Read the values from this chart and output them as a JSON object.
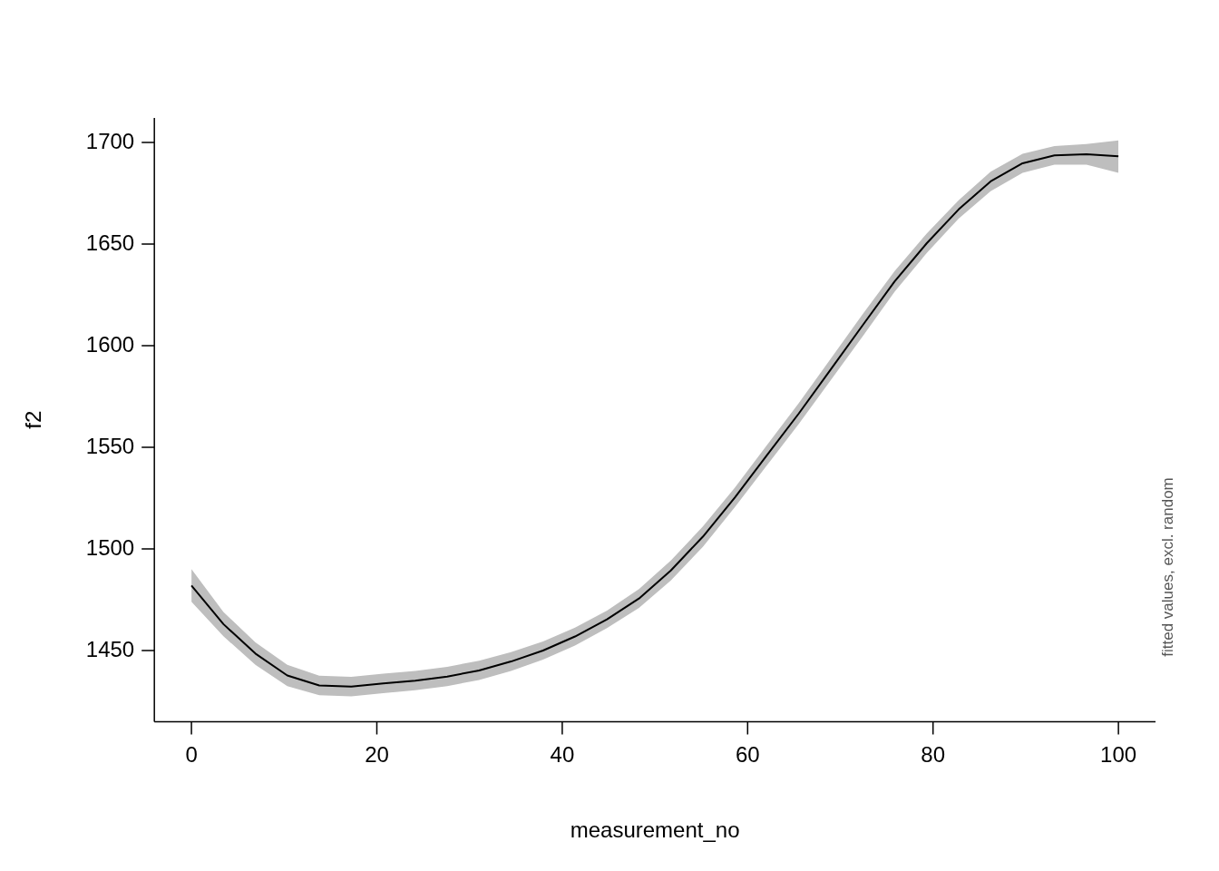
{
  "chart_data": {
    "type": "line",
    "xlabel": "measurement_no",
    "ylabel": "f2",
    "annotations": [
      "fitted values, excl. random"
    ],
    "x": [
      0,
      3.45,
      6.9,
      10.34,
      13.79,
      17.24,
      20.69,
      24.14,
      27.59,
      31.03,
      34.48,
      37.93,
      41.38,
      44.83,
      48.28,
      51.72,
      55.17,
      58.62,
      62.07,
      65.52,
      68.97,
      72.41,
      75.86,
      79.31,
      82.76,
      86.21,
      89.66,
      93.1,
      96.55,
      100
    ],
    "series": [
      {
        "color": "#000000",
        "values": [
          1482,
          1463,
          1448.5,
          1437.7,
          1432.8,
          1432.3,
          1433.8,
          1435.2,
          1437.2,
          1440.2,
          1444.6,
          1450,
          1456.9,
          1465.3,
          1475.6,
          1489.4,
          1506,
          1525.3,
          1546,
          1566.6,
          1588.3,
          1610,
          1631.6,
          1650.3,
          1667,
          1680.8,
          1689.7,
          1693.6,
          1694.1,
          1693.1
        ],
        "lower": [
          1474,
          1457,
          1443,
          1432.5,
          1428,
          1427.5,
          1429,
          1430.5,
          1432.5,
          1435.5,
          1440,
          1445.5,
          1452.5,
          1461,
          1471,
          1484.5,
          1501,
          1520.5,
          1541,
          1561.5,
          1583,
          1604.5,
          1626.5,
          1645.5,
          1662.5,
          1676,
          1685,
          1689,
          1689,
          1685
        ],
        "upper": [
          1490,
          1469,
          1454,
          1443,
          1437.6,
          1437.1,
          1438.6,
          1440,
          1442,
          1445,
          1449.2,
          1454.5,
          1461.3,
          1469.6,
          1480.2,
          1494.3,
          1511,
          1530.1,
          1551,
          1571.7,
          1593.6,
          1615.5,
          1636.7,
          1655.1,
          1671.5,
          1685.6,
          1694.4,
          1698.2,
          1699.2,
          1701
        ]
      }
    ],
    "xlim": [
      -4,
      104
    ],
    "xticks": [
      0,
      20,
      40,
      60,
      80,
      100
    ],
    "ylim": [
      1415,
      1712
    ],
    "yticks": [
      1450,
      1500,
      1550,
      1600,
      1650,
      1700
    ],
    "grid": false,
    "legend": false,
    "marker": "none",
    "line_style": "solid"
  }
}
